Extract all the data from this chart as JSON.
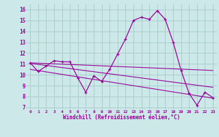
{
  "xlabel": "Windchill (Refroidissement éolien,°C)",
  "bg_color": "#cce8e8",
  "grid_color": "#aacccc",
  "line_color": "#990099",
  "xlim": [
    -0.5,
    23.5
  ],
  "ylim": [
    6.8,
    16.5
  ],
  "xticks": [
    0,
    1,
    2,
    3,
    4,
    5,
    6,
    7,
    8,
    9,
    10,
    11,
    12,
    13,
    14,
    15,
    16,
    17,
    18,
    19,
    20,
    21,
    22,
    23
  ],
  "yticks": [
    7,
    8,
    9,
    10,
    11,
    12,
    13,
    14,
    15,
    16
  ],
  "main_x": [
    0,
    1,
    2,
    3,
    4,
    5,
    6,
    7,
    8,
    9,
    10,
    11,
    12,
    13,
    14,
    15,
    16,
    17,
    18,
    19,
    20,
    21,
    22,
    23
  ],
  "main_y": [
    11.1,
    10.3,
    10.8,
    11.3,
    11.2,
    11.2,
    9.7,
    8.4,
    9.9,
    9.4,
    10.5,
    11.9,
    13.3,
    15.0,
    15.3,
    15.1,
    15.9,
    15.1,
    13.0,
    10.4,
    8.3,
    7.2,
    8.4,
    7.9
  ],
  "trend1_x": [
    0,
    23
  ],
  "trend1_y": [
    11.1,
    10.4
  ],
  "trend2_x": [
    0,
    23
  ],
  "trend2_y": [
    11.05,
    8.85
  ],
  "trend3_x": [
    0,
    23
  ],
  "trend3_y": [
    10.5,
    7.85
  ]
}
